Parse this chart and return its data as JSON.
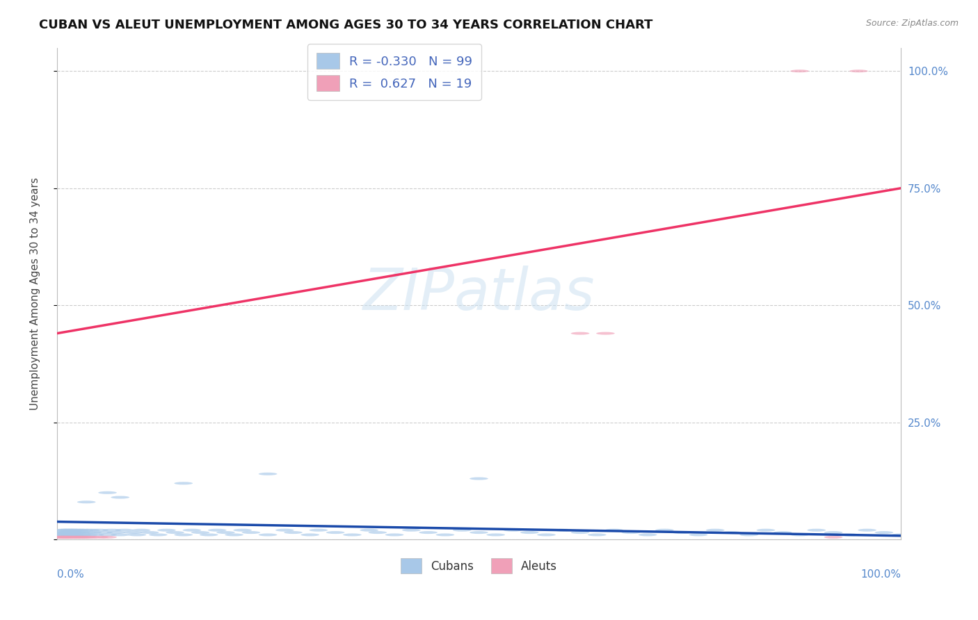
{
  "title": "CUBAN VS ALEUT UNEMPLOYMENT AMONG AGES 30 TO 34 YEARS CORRELATION CHART",
  "source": "Source: ZipAtlas.com",
  "ylabel": "Unemployment Among Ages 30 to 34 years",
  "watermark": "ZIPatlas",
  "legend_r_cuban": "-0.330",
  "legend_n_cuban": "99",
  "legend_r_aleut": "0.627",
  "legend_n_aleut": "19",
  "cuban_color": "#a8c8e8",
  "aleut_color": "#f0a0b8",
  "trendline_cuban_color": "#1a4aaa",
  "trendline_aleut_color": "#ee3366",
  "xlim": [
    0,
    1
  ],
  "ylim": [
    0,
    1.05
  ],
  "ytick_vals": [
    0.0,
    0.25,
    0.5,
    0.75,
    1.0
  ],
  "ytick_labels": [
    "",
    "25.0%",
    "50.0%",
    "75.0%",
    "100.0%"
  ],
  "cuban_trend": [
    0.038,
    0.008
  ],
  "aleut_trend": [
    0.44,
    0.75
  ],
  "cuban_x": [
    0.003,
    0.005,
    0.006,
    0.007,
    0.008,
    0.009,
    0.01,
    0.011,
    0.012,
    0.013,
    0.014,
    0.015,
    0.016,
    0.017,
    0.018,
    0.019,
    0.02,
    0.021,
    0.022,
    0.023,
    0.025,
    0.027,
    0.028,
    0.03,
    0.032,
    0.035,
    0.038,
    0.04,
    0.042,
    0.045,
    0.05,
    0.055,
    0.06,
    0.065,
    0.07,
    0.075,
    0.08,
    0.09,
    0.095,
    0.1,
    0.11,
    0.12,
    0.13,
    0.14,
    0.15,
    0.16,
    0.17,
    0.18,
    0.19,
    0.2,
    0.21,
    0.22,
    0.23,
    0.25,
    0.27,
    0.28,
    0.3,
    0.31,
    0.33,
    0.35,
    0.37,
    0.38,
    0.4,
    0.42,
    0.44,
    0.46,
    0.48,
    0.5,
    0.52,
    0.54,
    0.56,
    0.58,
    0.6,
    0.62,
    0.64,
    0.66,
    0.68,
    0.7,
    0.72,
    0.74,
    0.76,
    0.78,
    0.8,
    0.82,
    0.84,
    0.86,
    0.88,
    0.9,
    0.92,
    0.94,
    0.96,
    0.98,
    1.0,
    0.15,
    0.25,
    0.5,
    0.035,
    0.06,
    0.075
  ],
  "cuban_y": [
    0.01,
    0.015,
    0.01,
    0.02,
    0.015,
    0.01,
    0.02,
    0.015,
    0.01,
    0.02,
    0.015,
    0.01,
    0.02,
    0.015,
    0.01,
    0.02,
    0.015,
    0.01,
    0.02,
    0.015,
    0.01,
    0.02,
    0.015,
    0.01,
    0.02,
    0.015,
    0.01,
    0.02,
    0.015,
    0.01,
    0.02,
    0.015,
    0.01,
    0.02,
    0.015,
    0.01,
    0.02,
    0.015,
    0.01,
    0.02,
    0.015,
    0.01,
    0.02,
    0.015,
    0.01,
    0.02,
    0.015,
    0.01,
    0.02,
    0.015,
    0.01,
    0.02,
    0.015,
    0.01,
    0.02,
    0.015,
    0.01,
    0.02,
    0.015,
    0.01,
    0.02,
    0.015,
    0.01,
    0.02,
    0.015,
    0.01,
    0.02,
    0.015,
    0.01,
    0.02,
    0.015,
    0.01,
    0.02,
    0.015,
    0.01,
    0.02,
    0.015,
    0.01,
    0.02,
    0.015,
    0.01,
    0.02,
    0.015,
    0.01,
    0.02,
    0.015,
    0.01,
    0.02,
    0.015,
    0.01,
    0.02,
    0.015,
    0.01,
    0.12,
    0.14,
    0.13,
    0.08,
    0.1,
    0.09
  ],
  "aleut_x": [
    0.003,
    0.005,
    0.008,
    0.01,
    0.013,
    0.016,
    0.02,
    0.023,
    0.027,
    0.03,
    0.035,
    0.04,
    0.05,
    0.06,
    0.62,
    0.65,
    0.88,
    0.92,
    0.95
  ],
  "aleut_y": [
    0.005,
    0.005,
    0.005,
    0.005,
    0.005,
    0.005,
    0.005,
    0.005,
    0.005,
    0.005,
    0.005,
    0.005,
    0.005,
    0.005,
    0.44,
    0.44,
    1.0,
    0.005,
    1.0
  ]
}
